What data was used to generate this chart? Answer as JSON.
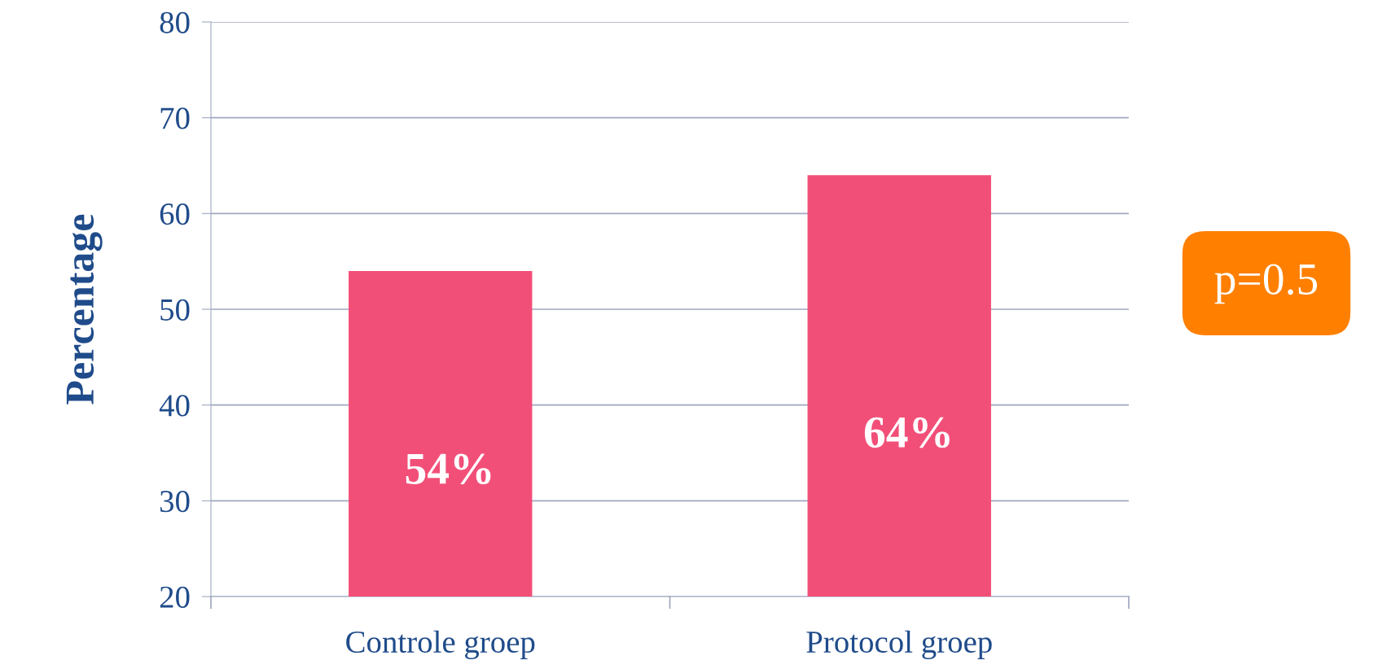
{
  "chart_data": {
    "type": "bar",
    "ylabel": "Percentage",
    "categories": [
      "Controle groep",
      "Protocol groep"
    ],
    "values": [
      54,
      64
    ],
    "value_labels": [
      "54%",
      "64%"
    ],
    "color": "#f24f78",
    "ylim": [
      20,
      80
    ],
    "yticks": [
      20,
      30,
      40,
      50,
      60,
      70,
      80
    ],
    "grid": "y",
    "annotations": [
      "p=0.5"
    ]
  }
}
